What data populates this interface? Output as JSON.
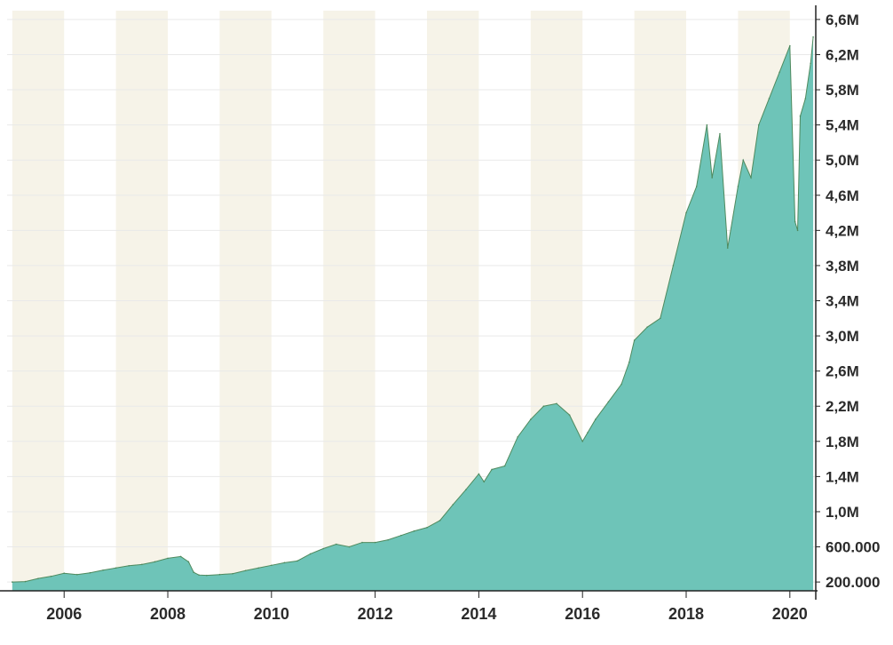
{
  "colors": {
    "band": "#f6f3e8",
    "grid": "#e9e9e9",
    "area_fill": "#6ec4b8",
    "area_line": "#4f8a5e",
    "axis": "#222222",
    "text": "#2b2b2b"
  },
  "chart_data": {
    "type": "area",
    "title": "",
    "xlabel": "",
    "ylabel": "",
    "xlim": [
      2004.9,
      2020.5
    ],
    "ylim": [
      100000,
      6700000
    ],
    "grid": true,
    "legend": "none",
    "y_ticks": [
      {
        "value": 200000,
        "label": "200.000"
      },
      {
        "value": 600000,
        "label": "600.000"
      },
      {
        "value": 1000000,
        "label": "1,0M"
      },
      {
        "value": 1400000,
        "label": "1,4M"
      },
      {
        "value": 1800000,
        "label": "1,8M"
      },
      {
        "value": 2200000,
        "label": "2,2M"
      },
      {
        "value": 2600000,
        "label": "2,6M"
      },
      {
        "value": 3000000,
        "label": "3,0M"
      },
      {
        "value": 3400000,
        "label": "3,4M"
      },
      {
        "value": 3800000,
        "label": "3,8M"
      },
      {
        "value": 4200000,
        "label": "4,2M"
      },
      {
        "value": 4600000,
        "label": "4,6M"
      },
      {
        "value": 5000000,
        "label": "5,0M"
      },
      {
        "value": 5400000,
        "label": "5,4M"
      },
      {
        "value": 5800000,
        "label": "5,8M"
      },
      {
        "value": 6200000,
        "label": "6,2M"
      },
      {
        "value": 6600000,
        "label": "6,6M"
      }
    ],
    "x_ticks": [
      {
        "value": 2006,
        "label": "2006"
      },
      {
        "value": 2008,
        "label": "2008"
      },
      {
        "value": 2010,
        "label": "2010"
      },
      {
        "value": 2012,
        "label": "2012"
      },
      {
        "value": 2014,
        "label": "2014"
      },
      {
        "value": 2016,
        "label": "2016"
      },
      {
        "value": 2018,
        "label": "2018"
      },
      {
        "value": 2020,
        "label": "2020"
      }
    ],
    "bands": [
      [
        2005.0,
        2006.0
      ],
      [
        2007.0,
        2008.0
      ],
      [
        2009.0,
        2010.0
      ],
      [
        2011.0,
        2012.0
      ],
      [
        2013.0,
        2014.0
      ],
      [
        2015.0,
        2016.0
      ],
      [
        2017.0,
        2018.0
      ],
      [
        2019.0,
        2020.0
      ]
    ],
    "series": [
      {
        "x": [
          2005.0,
          2005.25,
          2005.5,
          2005.75,
          2006.0,
          2006.25,
          2006.5,
          2006.75,
          2007.0,
          2007.25,
          2007.5,
          2007.75,
          2008.0,
          2008.25,
          2008.4,
          2008.5,
          2008.6,
          2008.75,
          2009.0,
          2009.25,
          2009.5,
          2009.75,
          2010.0,
          2010.25,
          2010.5,
          2010.75,
          2011.0,
          2011.25,
          2011.5,
          2011.75,
          2012.0,
          2012.25,
          2012.5,
          2012.75,
          2013.0,
          2013.25,
          2013.5,
          2013.75,
          2014.0,
          2014.1,
          2014.25,
          2014.5,
          2014.75,
          2015.0,
          2015.25,
          2015.5,
          2015.75,
          2016.0,
          2016.1,
          2016.25,
          2016.5,
          2016.75,
          2016.9,
          2017.0,
          2017.25,
          2017.5,
          2017.75,
          2018.0,
          2018.2,
          2018.4,
          2018.5,
          2018.65,
          2018.8,
          2019.0,
          2019.1,
          2019.25,
          2019.4,
          2019.6,
          2019.8,
          2020.0,
          2020.1,
          2020.15,
          2020.2,
          2020.3,
          2020.4,
          2020.45
        ],
        "values": [
          200000,
          205000,
          240000,
          265000,
          300000,
          285000,
          305000,
          335000,
          360000,
          385000,
          400000,
          430000,
          470000,
          490000,
          430000,
          310000,
          280000,
          275000,
          285000,
          295000,
          330000,
          360000,
          390000,
          420000,
          440000,
          520000,
          580000,
          630000,
          600000,
          650000,
          650000,
          680000,
          730000,
          780000,
          820000,
          900000,
          1080000,
          1250000,
          1430000,
          1340000,
          1480000,
          1520000,
          1850000,
          2050000,
          2200000,
          2230000,
          2100000,
          1800000,
          1900000,
          2050000,
          2250000,
          2450000,
          2700000,
          2950000,
          3100000,
          3200000,
          3800000,
          4400000,
          4700000,
          5400000,
          4800000,
          5300000,
          4000000,
          4700000,
          5000000,
          4800000,
          5400000,
          5700000,
          6000000,
          6300000,
          4300000,
          4200000,
          5500000,
          5700000,
          6100000,
          6400000
        ]
      }
    ]
  }
}
